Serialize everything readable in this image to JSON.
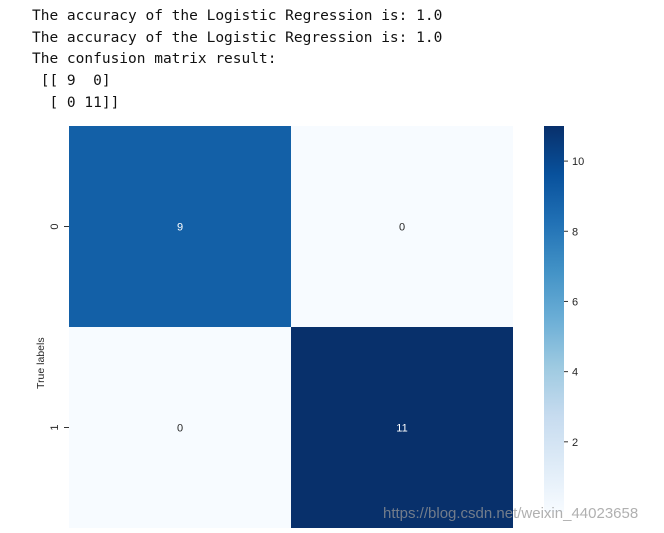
{
  "console": {
    "lines": [
      "The accuracy of the Logistic Regression is: 1.0",
      "The accuracy of the Logistic Regression is: 1.0",
      "The confusion matrix result:",
      " [[ 9  0]",
      "  [ 0 11]]"
    ]
  },
  "chart_data": {
    "type": "heatmap",
    "colormap": "Blues",
    "x_categories": [],
    "y_categories": [
      "0",
      "1"
    ],
    "matrix": [
      [
        9,
        0
      ],
      [
        0,
        11
      ]
    ],
    "annotations": true,
    "ylabel": "True labels",
    "xlabel": "",
    "title": "",
    "colorbar": {
      "ticks": [
        2,
        4,
        6,
        8,
        10
      ],
      "range": [
        0,
        11
      ]
    }
  },
  "watermark": "https://blog.csdn.net/weixin_44023658"
}
